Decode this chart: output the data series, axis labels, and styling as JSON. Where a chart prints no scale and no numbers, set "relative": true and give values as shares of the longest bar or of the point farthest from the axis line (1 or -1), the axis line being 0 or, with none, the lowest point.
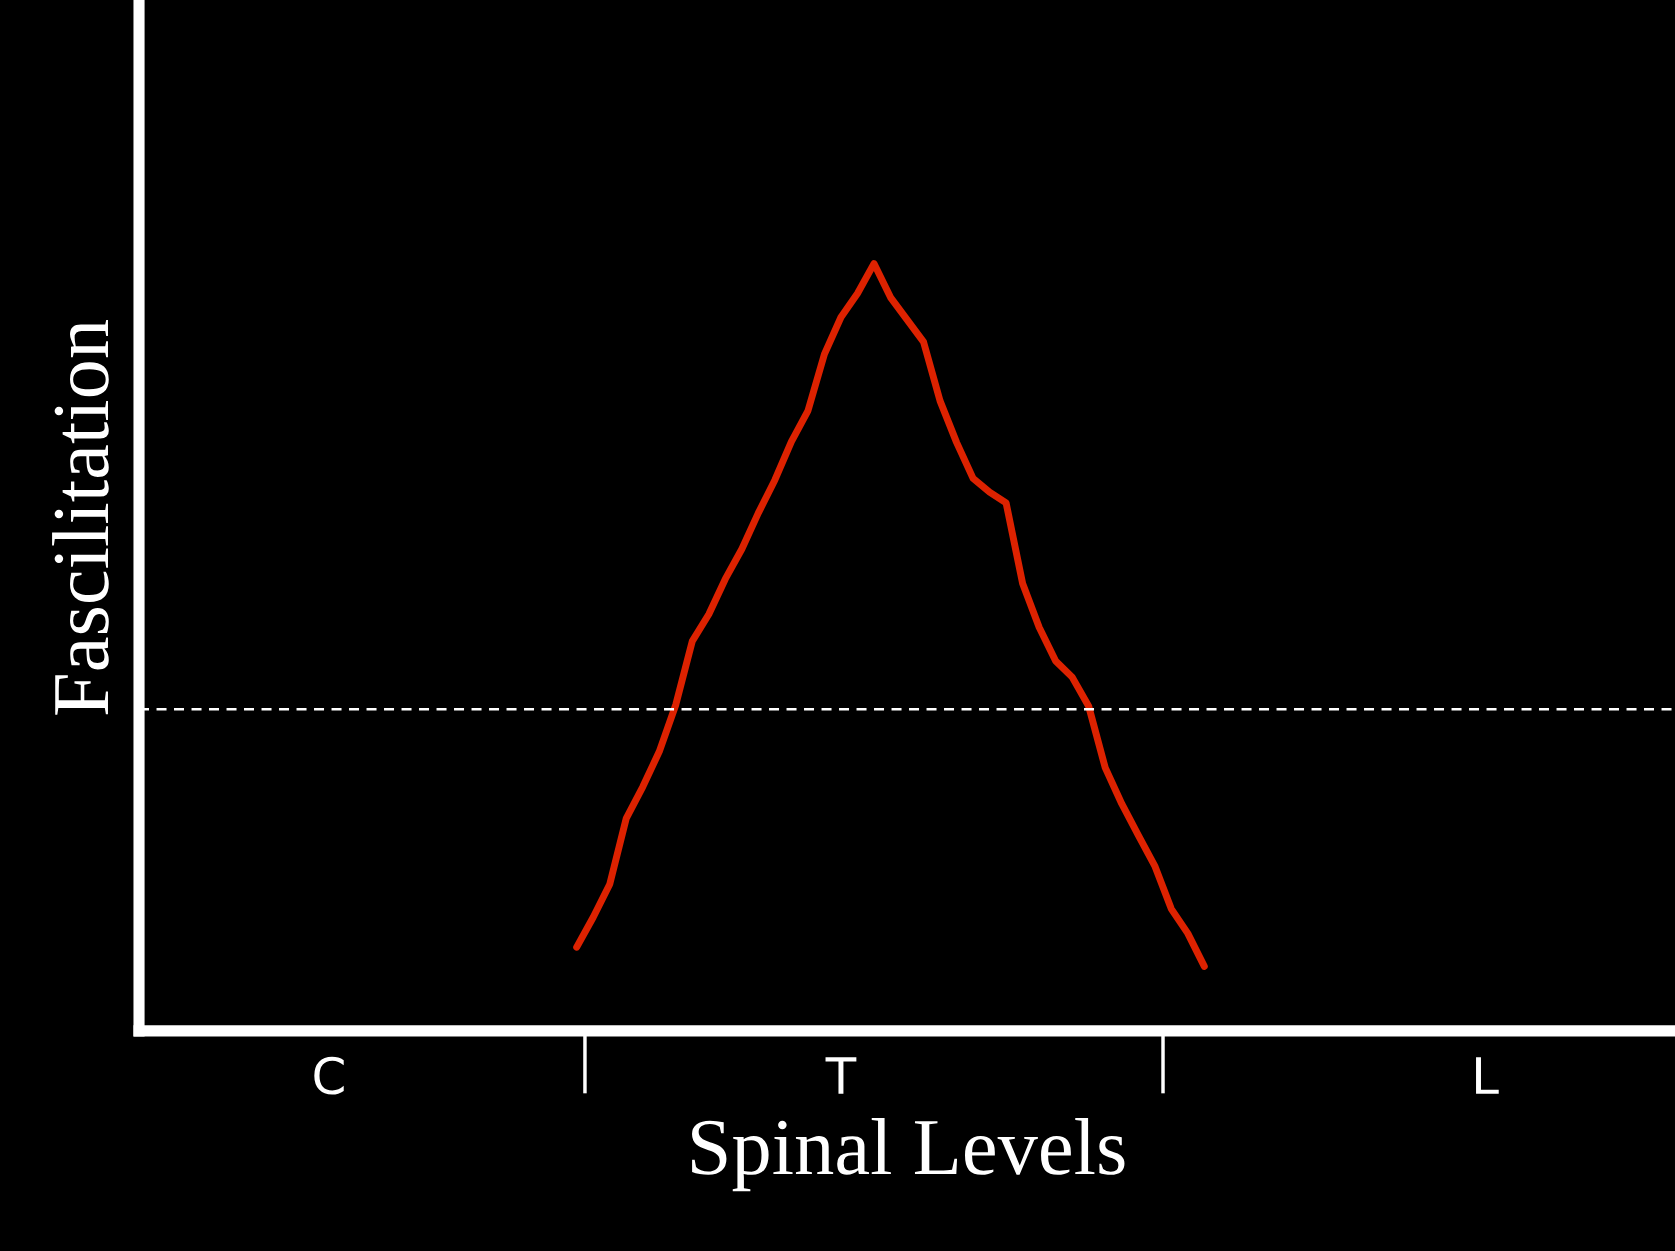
{
  "chart_data": {
    "type": "line",
    "xlabel": "Spinal Levels",
    "ylabel": "Fascilitation",
    "relative": true,
    "categories": [
      null,
      null,
      null,
      null,
      null,
      null,
      null,
      null,
      null,
      null,
      null,
      "C",
      null,
      null,
      null,
      null,
      null,
      null,
      null,
      null,
      null,
      null,
      null,
      null,
      null,
      null,
      null,
      null,
      null,
      null,
      null,
      null,
      null,
      null,
      null,
      null,
      null,
      null,
      null,
      null,
      null,
      null,
      "T",
      null,
      null,
      null,
      null,
      null,
      null,
      null,
      null,
      null,
      null,
      null,
      null,
      null,
      null,
      null,
      null,
      null,
      null,
      null,
      null,
      null,
      null,
      null,
      null,
      null,
      null,
      null,
      null,
      null,
      null,
      null,
      null,
      null,
      null,
      null,
      null,
      null,
      null,
      "L",
      null,
      null,
      null,
      null,
      null,
      null,
      null,
      null,
      null,
      null,
      null
    ],
    "series": [
      {
        "color": "#dd2200",
        "line_style": "solid",
        "marker": "none",
        "values": [
          null,
          null,
          null,
          null,
          null,
          null,
          null,
          null,
          null,
          null,
          null,
          null,
          null,
          null,
          null,
          null,
          null,
          null,
          null,
          null,
          null,
          null,
          null,
          null,
          null,
          null,
          0.109,
          0.148,
          0.191,
          0.277,
          0.318,
          0.364,
          0.425,
          0.508,
          0.543,
          0.589,
          0.628,
          0.675,
          0.718,
          0.768,
          0.808,
          0.882,
          0.93,
          0.961,
          1,
          0.956,
          0.927,
          0.898,
          0.821,
          0.767,
          0.72,
          0.702,
          0.688,
          0.583,
          0.526,
          0.482,
          0.461,
          0.423,
          0.343,
          0.296,
          0.255,
          0.215,
          0.159,
          0.127,
          0.084,
          null,
          null,
          null,
          null,
          null,
          null,
          null,
          null,
          null,
          null,
          null,
          null,
          null,
          null,
          null,
          null,
          null,
          null,
          null,
          null,
          null,
          null,
          null,
          null,
          null,
          null,
          null,
          null
        ]
      }
    ],
    "ref_lines": [
      {
        "axis": "y",
        "value": 0.419,
        "color": "#ffffff",
        "line_style": "dashed"
      }
    ],
    "grid": false
  }
}
